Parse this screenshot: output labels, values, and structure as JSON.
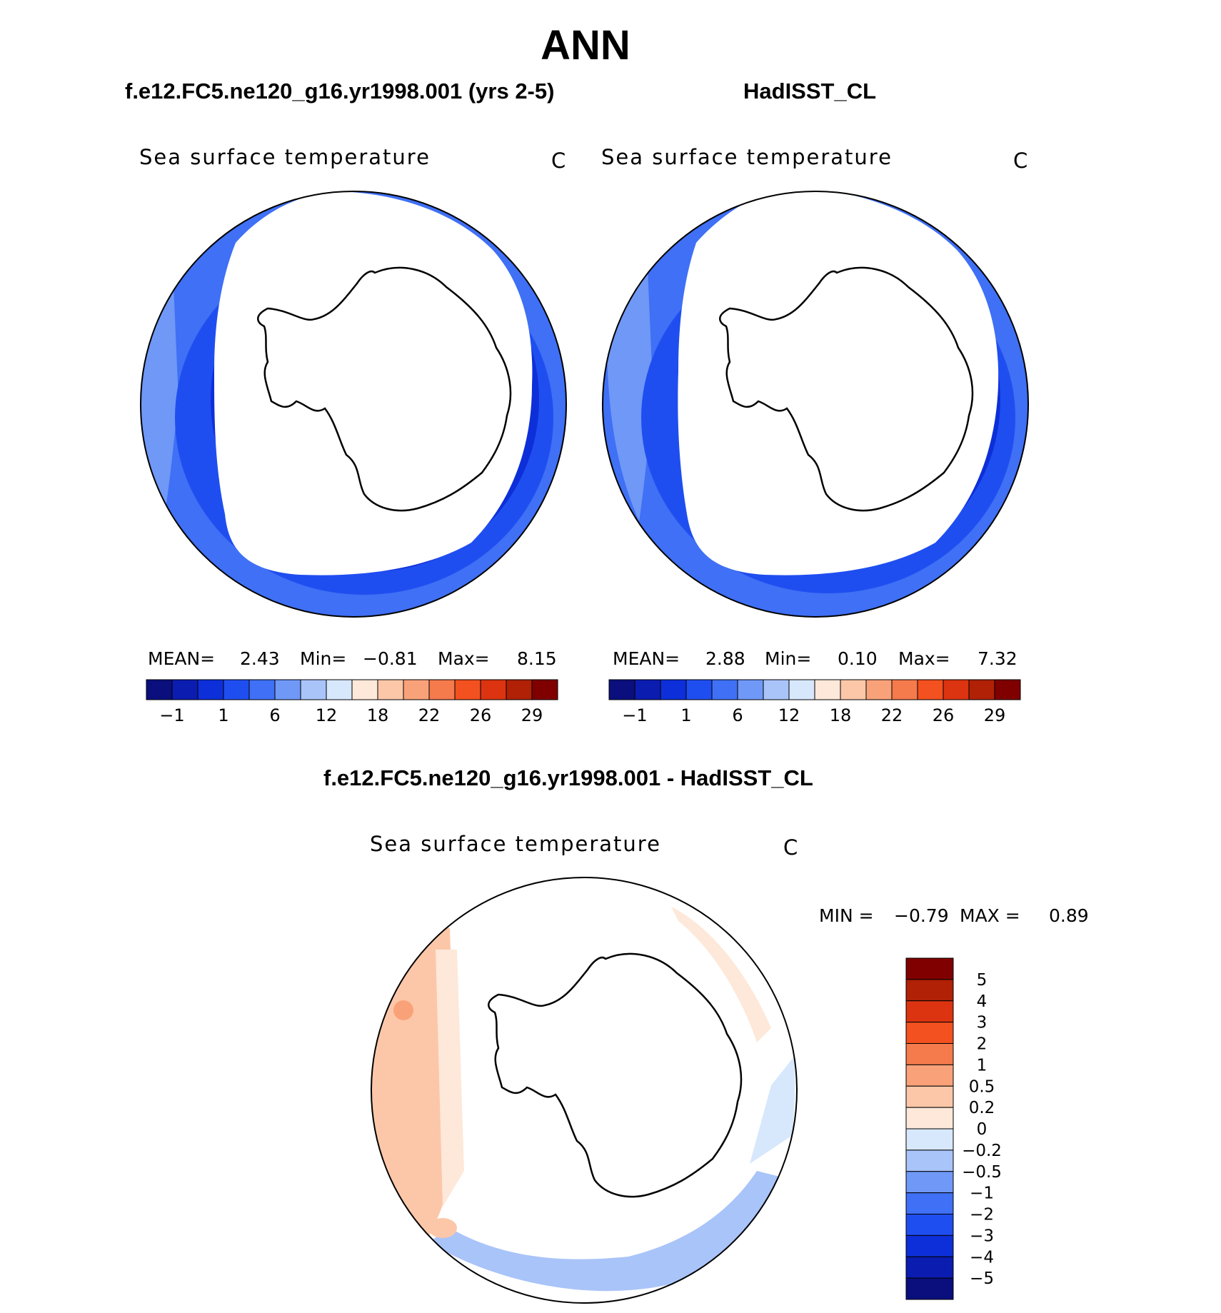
{
  "figure": {
    "title": "ANN",
    "colors": {
      "text": "#000000",
      "map_edge": "#000000",
      "background": "#ffffff"
    }
  },
  "panels": {
    "model": {
      "case_title": "f.e12.FC5.ne120_g16.yr1998.001 (yrs 2-5)",
      "variable": "Sea surface temperature",
      "units": "C",
      "stats": {
        "mean_label": "MEAN=",
        "mean": "2.43",
        "min_label": "Min=",
        "min": "−0.81",
        "max_label": "Max=",
        "max": "8.15"
      }
    },
    "obs": {
      "case_title": "HadISST_CL",
      "variable": "Sea surface temperature",
      "units": "C",
      "stats": {
        "mean_label": "MEAN=",
        "mean": "2.88",
        "min_label": "Min=",
        "min": "0.10",
        "max_label": "Max=",
        "max": "7.32"
      }
    },
    "diff": {
      "case_title": "f.e12.FC5.ne120_g16.yr1998.001 - HadISST_CL",
      "variable": "Sea surface temperature",
      "units": "C",
      "stats": {
        "min_label": "MIN =",
        "min": "−0.79",
        "max_label": "MAX =",
        "max": "0.89"
      }
    }
  },
  "chart_data": [
    {
      "type": "heatmap",
      "projection": "south polar stereographic",
      "title": "f.e12.FC5.ne120_g16.yr1998.001 (yrs 2-5)",
      "variable": "Sea surface temperature",
      "units": "C",
      "mean": 2.43,
      "min": -0.81,
      "max": 8.15,
      "colorbar": {
        "orientation": "horizontal",
        "tick_labels": [
          "−1",
          "1",
          "6",
          "12",
          "18",
          "22",
          "26",
          "29"
        ],
        "levels": [
          -1,
          0,
          1,
          3,
          6,
          9,
          12,
          15,
          18,
          20,
          22,
          24,
          26,
          28,
          29
        ],
        "colors": [
          "#0a0f7d",
          "#0b1cb0",
          "#0d2fd9",
          "#1f4ef0",
          "#3f70f5",
          "#6f98f7",
          "#a9c4f9",
          "#d7e8fc",
          "#fde8d9",
          "#fcc7a8",
          "#f9a27a",
          "#f57a4c",
          "#f3511f",
          "#dc3410",
          "#b02105",
          "#800000"
        ]
      }
    },
    {
      "type": "heatmap",
      "projection": "south polar stereographic",
      "title": "HadISST_CL",
      "variable": "Sea surface temperature",
      "units": "C",
      "mean": 2.88,
      "min": 0.1,
      "max": 7.32,
      "colorbar": {
        "orientation": "horizontal",
        "tick_labels": [
          "−1",
          "1",
          "6",
          "12",
          "18",
          "22",
          "26",
          "29"
        ],
        "levels": [
          -1,
          0,
          1,
          3,
          6,
          9,
          12,
          15,
          18,
          20,
          22,
          24,
          26,
          28,
          29
        ],
        "colors": [
          "#0a0f7d",
          "#0b1cb0",
          "#0d2fd9",
          "#1f4ef0",
          "#3f70f5",
          "#6f98f7",
          "#a9c4f9",
          "#d7e8fc",
          "#fde8d9",
          "#fcc7a8",
          "#f9a27a",
          "#f57a4c",
          "#f3511f",
          "#dc3410",
          "#b02105",
          "#800000"
        ]
      }
    },
    {
      "type": "heatmap",
      "projection": "south polar stereographic",
      "title": "f.e12.FC5.ne120_g16.yr1998.001 - HadISST_CL",
      "variable": "Sea surface temperature",
      "units": "C",
      "min": -0.79,
      "max": 0.89,
      "colorbar": {
        "orientation": "vertical",
        "tick_labels": [
          "5",
          "4",
          "3",
          "2",
          "1",
          "0.5",
          "0.2",
          "0",
          "−0.2",
          "−0.5",
          "−1",
          "−2",
          "−3",
          "−4",
          "−5"
        ],
        "colors": [
          "#800000",
          "#b02105",
          "#dc3410",
          "#f3511f",
          "#f57a4c",
          "#f9a27a",
          "#fcc7a8",
          "#fde8d9",
          "#d7e8fc",
          "#a9c4f9",
          "#6f98f7",
          "#3f70f5",
          "#1f4ef0",
          "#0d2fd9",
          "#0b1cb0",
          "#0a0f7d"
        ]
      }
    }
  ]
}
